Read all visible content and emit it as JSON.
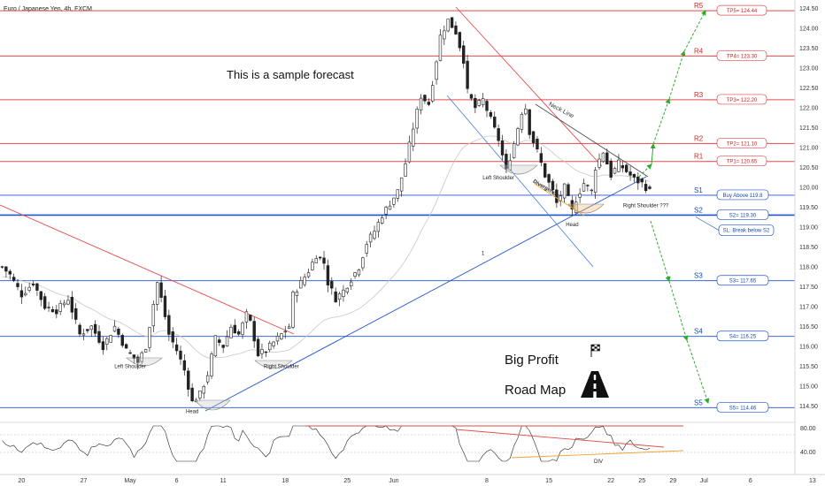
{
  "chart_data": {
    "type": "candlestick",
    "title": "Euro / Japanese Yen, 4h, FXCM",
    "annotation_main": "This is a sample forecast",
    "road_map": [
      "Big Profit",
      "Road Map"
    ],
    "y_ticks": [
      114.5,
      115.0,
      115.5,
      116.0,
      116.5,
      117.0,
      117.5,
      118.0,
      118.5,
      119.0,
      119.5,
      120.0,
      120.5,
      121.0,
      121.5,
      122.0,
      122.5,
      123.0,
      123.5,
      124.0,
      124.5
    ],
    "ylim": [
      114.2,
      124.62
    ],
    "x_ticks": [
      {
        "label": "20",
        "i": 5
      },
      {
        "label": "27",
        "i": 21
      },
      {
        "label": "May",
        "i": 33
      },
      {
        "label": "6",
        "i": 45
      },
      {
        "label": "11",
        "i": 57
      },
      {
        "label": "18",
        "i": 73
      },
      {
        "label": "25",
        "i": 89
      },
      {
        "label": "Jun",
        "i": 101
      },
      {
        "label": "8",
        "i": 125
      },
      {
        "label": "15",
        "i": 141
      },
      {
        "label": "22",
        "i": 157
      },
      {
        "label": "25",
        "i": 165
      },
      {
        "label": "29",
        "i": 173
      },
      {
        "label": "Jul",
        "i": 181
      },
      {
        "label": "6",
        "i": 193
      },
      {
        "label": "13",
        "i": 209
      }
    ],
    "resistances": [
      {
        "name": "R5",
        "price": 124.44,
        "tag": "TP5= 124.44"
      },
      {
        "name": "R4",
        "price": 123.3,
        "tag": "TP4= 123.30"
      },
      {
        "name": "R3",
        "price": 122.2,
        "tag": "TP3= 122.20"
      },
      {
        "name": "R2",
        "price": 121.1,
        "tag": "TP2= 121.10"
      },
      {
        "name": "R1",
        "price": 120.65,
        "tag": "TP1= 120.65"
      }
    ],
    "supports": [
      {
        "name": "S1",
        "price": 119.8,
        "tag": "Buy Above 119.8"
      },
      {
        "name": "S2",
        "price": 119.3,
        "tag": "S2= 119.30"
      },
      {
        "name": "S3",
        "price": 117.65,
        "tag": "S3= 117.65"
      },
      {
        "name": "S4",
        "price": 116.25,
        "tag": "S4= 116.25"
      },
      {
        "name": "S5",
        "price": 114.46,
        "tag": "S5= 114.46"
      }
    ],
    "sl_tag": "SL: Break below S2",
    "pattern_labels": [
      {
        "text": "Left Shoulder",
        "i": 33,
        "price": 115.45
      },
      {
        "text": "Head",
        "i": 49,
        "price": 114.32
      },
      {
        "text": "Right Shoulder",
        "i": 72,
        "price": 115.45
      },
      {
        "text": "Left Shoulder",
        "i": 128,
        "price": 120.2
      },
      {
        "text": "Head",
        "i": 147,
        "price": 119.02
      },
      {
        "text": "Right Shoulder ???",
        "i": 166,
        "price": 119.5
      },
      {
        "text": "Neck Line",
        "i": 144,
        "price": 121.9
      },
      {
        "text": "Divergence",
        "i": 140,
        "price": 119.95
      },
      {
        "text": "1",
        "i": 124,
        "price": 118.3
      }
    ],
    "rsi_ticks": [
      "80.00",
      "40.00"
    ],
    "rsi_label": "DIV",
    "ohlc_anchors": [
      [
        0,
        118.0
      ],
      [
        2,
        117.8
      ],
      [
        5,
        117.3
      ],
      [
        8,
        117.6
      ],
      [
        11,
        117.0
      ],
      [
        14,
        116.9
      ],
      [
        17,
        117.2
      ],
      [
        20,
        116.3
      ],
      [
        23,
        116.5
      ],
      [
        26,
        116.0
      ],
      [
        29,
        116.5
      ],
      [
        32,
        115.9
      ],
      [
        35,
        115.6
      ],
      [
        37,
        116.0
      ],
      [
        40,
        117.6
      ],
      [
        41,
        117.2
      ],
      [
        43,
        116.3
      ],
      [
        45,
        115.9
      ],
      [
        47,
        115.4
      ],
      [
        49,
        114.6
      ],
      [
        51,
        114.8
      ],
      [
        53,
        115.3
      ],
      [
        55,
        116.2
      ],
      [
        57,
        116.0
      ],
      [
        59,
        116.5
      ],
      [
        61,
        116.3
      ],
      [
        63,
        116.8
      ],
      [
        64,
        116.6
      ],
      [
        66,
        115.8
      ],
      [
        68,
        115.9
      ],
      [
        70,
        116.1
      ],
      [
        72,
        116.3
      ],
      [
        74,
        116.5
      ],
      [
        75,
        117.3
      ],
      [
        77,
        117.6
      ],
      [
        79,
        117.9
      ],
      [
        81,
        118.3
      ],
      [
        83,
        118.1
      ],
      [
        84,
        117.6
      ],
      [
        86,
        117.2
      ],
      [
        88,
        117.4
      ],
      [
        90,
        117.7
      ],
      [
        92,
        118.0
      ],
      [
        94,
        118.6
      ],
      [
        96,
        118.9
      ],
      [
        98,
        119.3
      ],
      [
        100,
        119.6
      ],
      [
        102,
        119.9
      ],
      [
        104,
        120.6
      ],
      [
        106,
        121.5
      ],
      [
        108,
        122.3
      ],
      [
        110,
        122.1
      ],
      [
        112,
        123.2
      ],
      [
        113,
        123.8
      ],
      [
        115,
        124.2
      ],
      [
        117,
        123.9
      ],
      [
        119,
        123.2
      ],
      [
        120,
        122.4
      ],
      [
        122,
        122.0
      ],
      [
        124,
        122.2
      ],
      [
        126,
        121.7
      ],
      [
        128,
        121.2
      ],
      [
        130,
        120.4
      ],
      [
        132,
        121.1
      ],
      [
        134,
        121.9
      ],
      [
        135,
        122.0
      ],
      [
        136,
        121.4
      ],
      [
        138,
        120.9
      ],
      [
        140,
        120.3
      ],
      [
        142,
        119.9
      ],
      [
        143,
        119.6
      ],
      [
        145,
        120.0
      ],
      [
        147,
        119.4
      ],
      [
        148,
        119.7
      ],
      [
        150,
        120.1
      ],
      [
        152,
        119.9
      ],
      [
        153,
        120.5
      ],
      [
        155,
        120.9
      ],
      [
        157,
        120.3
      ],
      [
        159,
        120.6
      ],
      [
        161,
        120.4
      ],
      [
        163,
        120.2
      ],
      [
        165,
        120.1
      ],
      [
        167,
        119.9
      ]
    ]
  }
}
